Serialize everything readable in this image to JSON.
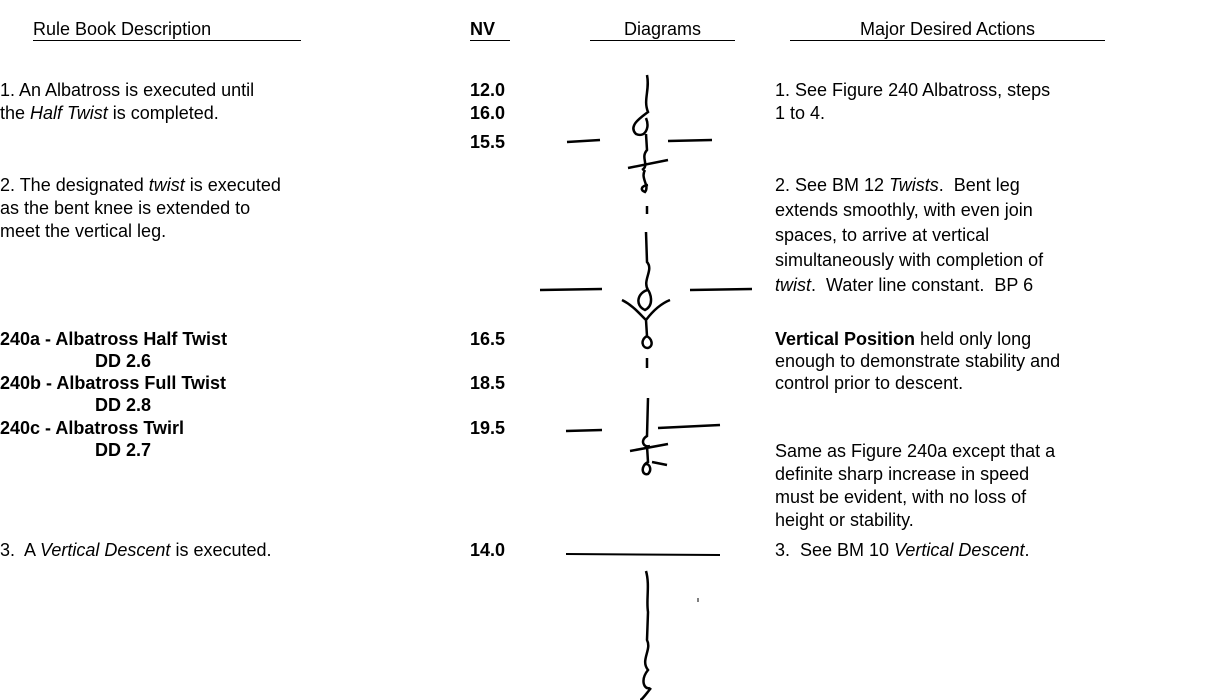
{
  "header": {
    "rule": "Rule Book Description",
    "nv": "NV",
    "diagrams": "Diagrams",
    "actions": "Major Desired Actions"
  },
  "rules": [
    [
      "1. An Albatross is executed until"
    ],
    [
      "the ",
      "Half Twist",
      " is completed."
    ],
    [
      "2. The designated ",
      "twist",
      " is executed"
    ],
    [
      "as the bent knee is extended to"
    ],
    [
      "meet the vertical leg."
    ],
    [
      "240a - Albatross Half Twist"
    ],
    [
      "DD 2.6"
    ],
    [
      "240b - Albatross Full Twist"
    ],
    [
      "DD 2.8"
    ],
    [
      "240c - Albatross Twirl"
    ],
    [
      "DD 2.7"
    ],
    [
      "3.  A ",
      "Vertical Descent",
      " is executed."
    ]
  ],
  "nv": [
    "12.0",
    "16.0",
    "15.5",
    "16.5",
    "18.5",
    "19.5",
    "14.0"
  ],
  "actions": [
    [
      "1. See Figure 240 Albatross, steps"
    ],
    [
      "1 to 4."
    ],
    [
      "2. See BM 12 ",
      "Twists",
      ".  Bent leg"
    ],
    [
      "extends smoothly, with even join"
    ],
    [
      "spaces, to arrive at vertical"
    ],
    [
      "simultaneously with completion of"
    ],
    [
      "twist",
      ".  Water line constant.  BP 6"
    ],
    [
      "Vertical Position",
      " held only long"
    ],
    [
      "enough to demonstrate stability and"
    ],
    [
      "control prior to descent."
    ],
    [
      "Same as Figure 240a except that a"
    ],
    [
      "definite sharp increase in speed"
    ],
    [
      "must be evident, with no loss of"
    ],
    [
      "height or stability."
    ],
    [
      "3.  See BM 10 ",
      "Vertical Descent",
      "."
    ]
  ]
}
